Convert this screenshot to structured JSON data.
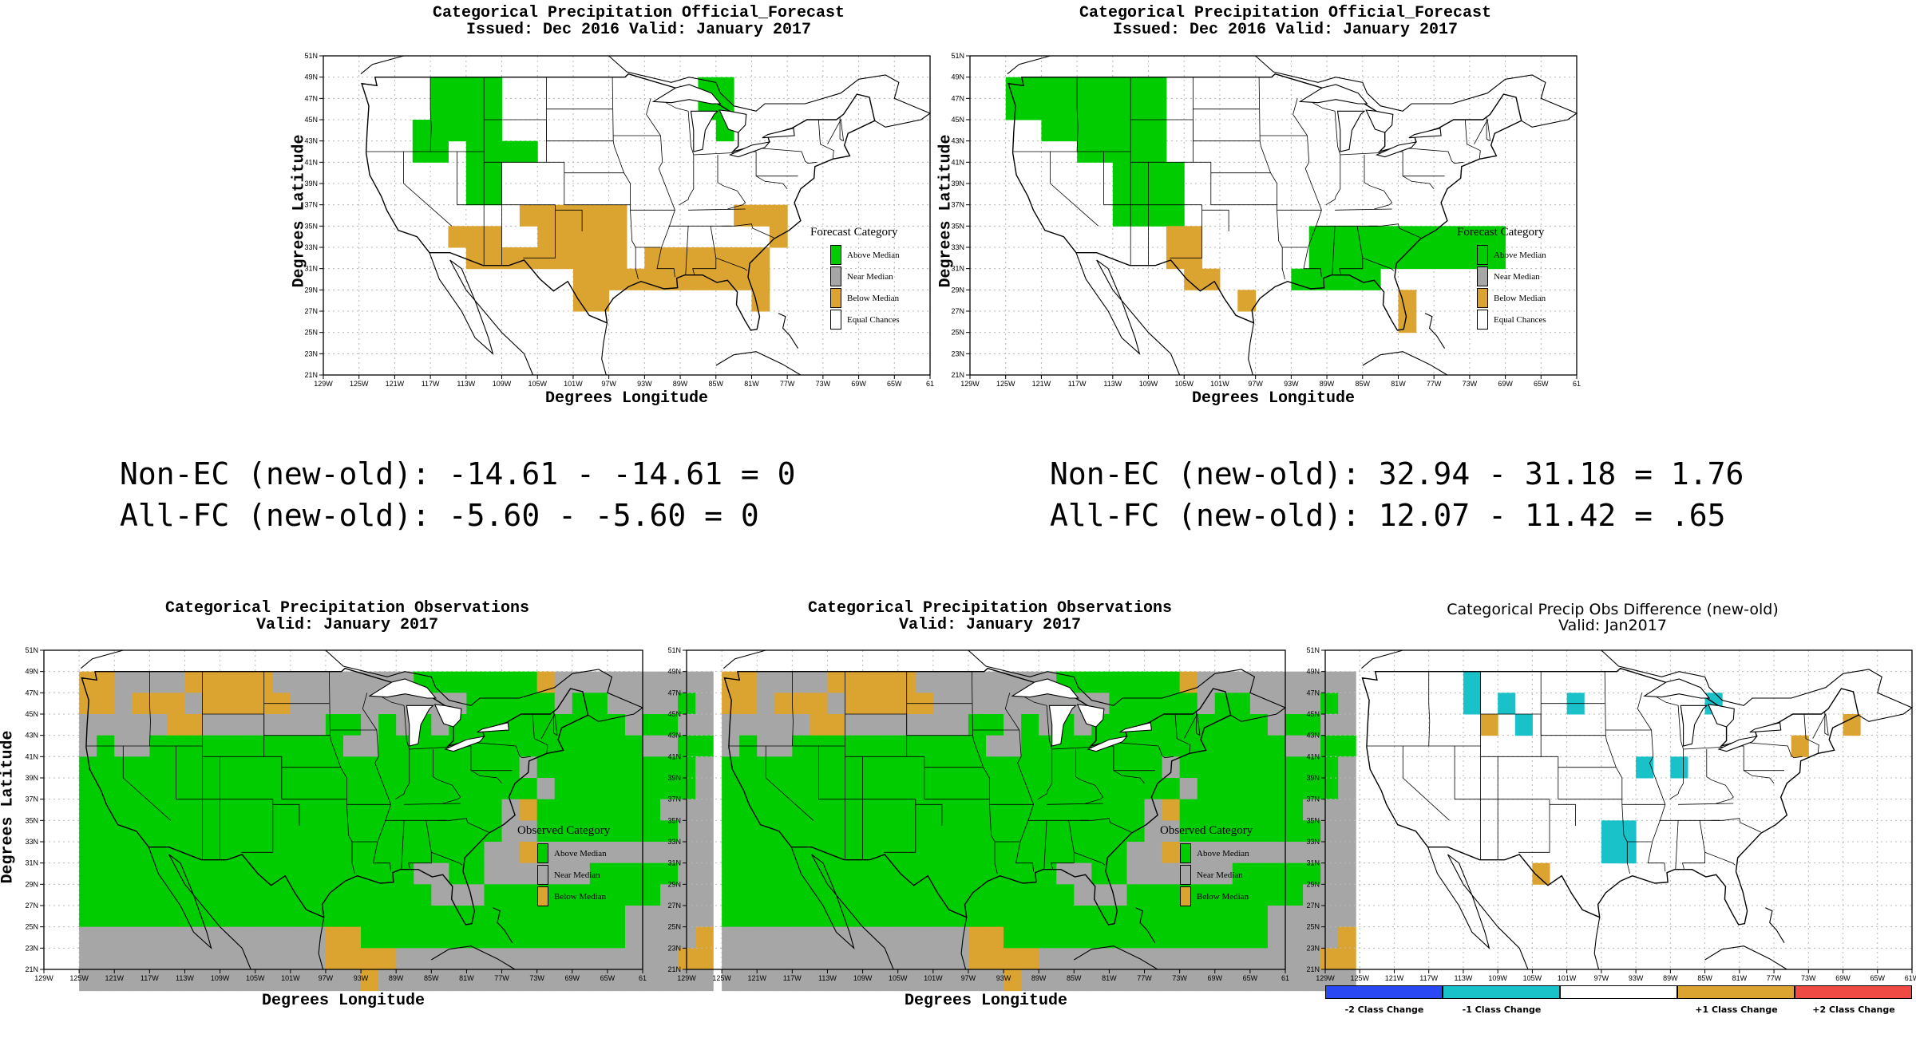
{
  "colors": {
    "above": "#00cc00",
    "near": "#a6a6a6",
    "below": "#dba431",
    "equal": "#ffffff",
    "minus2": "#2b48f5",
    "minus1": "#19c2c9",
    "none": "#ffffff",
    "plus1": "#dba431",
    "plus2": "#f04a45"
  },
  "axes": {
    "lat_ticks": [
      "21N",
      "23N",
      "25N",
      "27N",
      "29N",
      "31N",
      "33N",
      "35N",
      "37N",
      "39N",
      "41N",
      "43N",
      "45N",
      "47N",
      "49N",
      "51N"
    ],
    "lon_ticks": [
      "129W",
      "125W",
      "121W",
      "117W",
      "113W",
      "109W",
      "105W",
      "101W",
      "97W",
      "93W",
      "89W",
      "85W",
      "81W",
      "77W",
      "73W",
      "69W",
      "65W",
      "61"
    ],
    "lon_ticks_diff": [
      "129W",
      "125W",
      "121W",
      "117W",
      "113W",
      "109W",
      "105W",
      "101W",
      "97W",
      "93W",
      "89W",
      "85W",
      "81W",
      "77W",
      "73W",
      "69W",
      "65W",
      "61W"
    ],
    "xlabel": "Degrees Longitude",
    "ylabel": "Degrees Latitude"
  },
  "forecast_old": {
    "title": "Categorical Precipitation Official_Forecast",
    "subtitle": "Issued: Dec 2016 Valid: January 2017",
    "legend_title": "Forecast Category",
    "legend": [
      "Above Median",
      "Near Median",
      "Below Median",
      "Equal Chances"
    ],
    "cells": {
      "above": [
        [
          -117,
          43,
          8,
          6
        ],
        [
          -119,
          41,
          4,
          4
        ],
        [
          -113,
          37,
          4,
          6
        ],
        [
          -109,
          41,
          4,
          2
        ],
        [
          -87,
          45,
          4,
          4
        ],
        [
          -85,
          43,
          2,
          2
        ]
      ],
      "below": [
        [
          -115,
          33,
          6,
          2
        ],
        [
          -113,
          31,
          8,
          2
        ],
        [
          -107,
          35,
          4,
          2
        ],
        [
          -105,
          31,
          10,
          6
        ],
        [
          -101,
          27,
          4,
          4
        ],
        [
          -97,
          29,
          4,
          2
        ],
        [
          -93,
          29,
          14,
          4
        ],
        [
          -83,
          35,
          6,
          2
        ],
        [
          -81,
          27,
          2,
          4
        ],
        [
          -79,
          33,
          2,
          2
        ]
      ]
    },
    "stats": [
      "Non-EC (new-old): -14.61 - -14.61 = 0",
      "All-FC (new-old): -5.60 - -5.60 = 0"
    ]
  },
  "forecast_new": {
    "title": "Categorical Precipitation Official_Forecast",
    "subtitle": "Issued: Dec 2016 Valid: January 2017",
    "legend_title": "Forecast Category",
    "legend": [
      "Above Median",
      "Near Median",
      "Below Median",
      "Equal Chances"
    ],
    "cells": {
      "above": [
        [
          -125,
          45,
          4,
          4
        ],
        [
          -121,
          43,
          4,
          6
        ],
        [
          -117,
          41,
          10,
          8
        ],
        [
          -113,
          35,
          8,
          6
        ],
        [
          -91,
          31,
          22,
          4
        ],
        [
          -93,
          29,
          10,
          2
        ]
      ],
      "below": [
        [
          -107,
          31,
          4,
          4
        ],
        [
          -105,
          29,
          4,
          2
        ],
        [
          -99,
          27,
          2,
          2
        ],
        [
          -81,
          25,
          2,
          4
        ]
      ]
    },
    "stats": [
      "Non-EC (new-old): 32.94 - 31.18 = 1.76",
      "All-FC (new-old): 12.07 - 11.42 = .65"
    ]
  },
  "obs_old": {
    "title": "Categorical Precipitation Observations",
    "subtitle": "Valid: January 2017",
    "legend_title": "Observed Category",
    "legend": [
      "Above Median",
      "Near Median",
      "Below Median"
    ]
  },
  "obs_new": {
    "title": "Categorical Precipitation Observations",
    "subtitle": "Valid: January 2017",
    "legend_title": "Observed Category",
    "legend": [
      "Above Median",
      "Near Median",
      "Below Median"
    ]
  },
  "diff": {
    "title": "Categorical Precip Obs Difference (new-old)",
    "subtitle": "Valid: Jan2017",
    "cells": {
      "minus1": [
        [
          -113,
          45,
          2,
          4
        ],
        [
          -109,
          45,
          2,
          2
        ],
        [
          -107,
          43,
          2,
          2
        ],
        [
          -101,
          45,
          2,
          2
        ],
        [
          -97,
          31,
          4,
          4
        ],
        [
          -95,
          31,
          2,
          2
        ],
        [
          -93,
          39,
          2,
          2
        ],
        [
          -89,
          39,
          2,
          2
        ],
        [
          -85,
          45,
          2,
          2
        ]
      ],
      "plus1": [
        [
          -111,
          43,
          2,
          2
        ],
        [
          -105,
          29,
          2,
          2
        ],
        [
          -75,
          41,
          2,
          2
        ],
        [
          -69,
          43,
          2,
          2
        ]
      ]
    },
    "scale_labels": [
      "-2 Class Change",
      "-1 Class Change",
      "+1 Class Change",
      "+2 Class Change"
    ]
  }
}
